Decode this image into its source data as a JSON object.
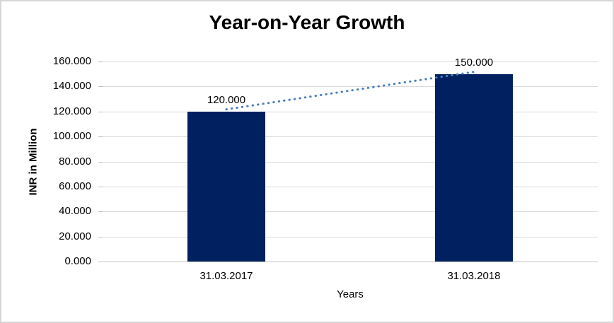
{
  "window": {
    "background_color": "#ffffff",
    "border_color": "#d6d6d6"
  },
  "chart_data": {
    "type": "bar",
    "title": "Year-on-Year Growth",
    "xlabel": "Years",
    "ylabel": "INR in Million",
    "categories": [
      "31.03.2017",
      "31.03.2018"
    ],
    "values": [
      120,
      150
    ],
    "data_labels": [
      "120.000",
      "150.000"
    ],
    "ylim": [
      0,
      160
    ],
    "ytick_step": 20,
    "ytick_labels": [
      "0.000",
      "20.000",
      "40.000",
      "60.000",
      "80.000",
      "100.000",
      "120.000",
      "140.000",
      "160.000"
    ],
    "grid": true,
    "legend": false,
    "bar_color": "#002060",
    "gridline_color": "#d9d9d9",
    "axis_line_color": "#bfbfbf",
    "trendline": {
      "style": "dotted",
      "color": "#4a7ebb"
    }
  }
}
